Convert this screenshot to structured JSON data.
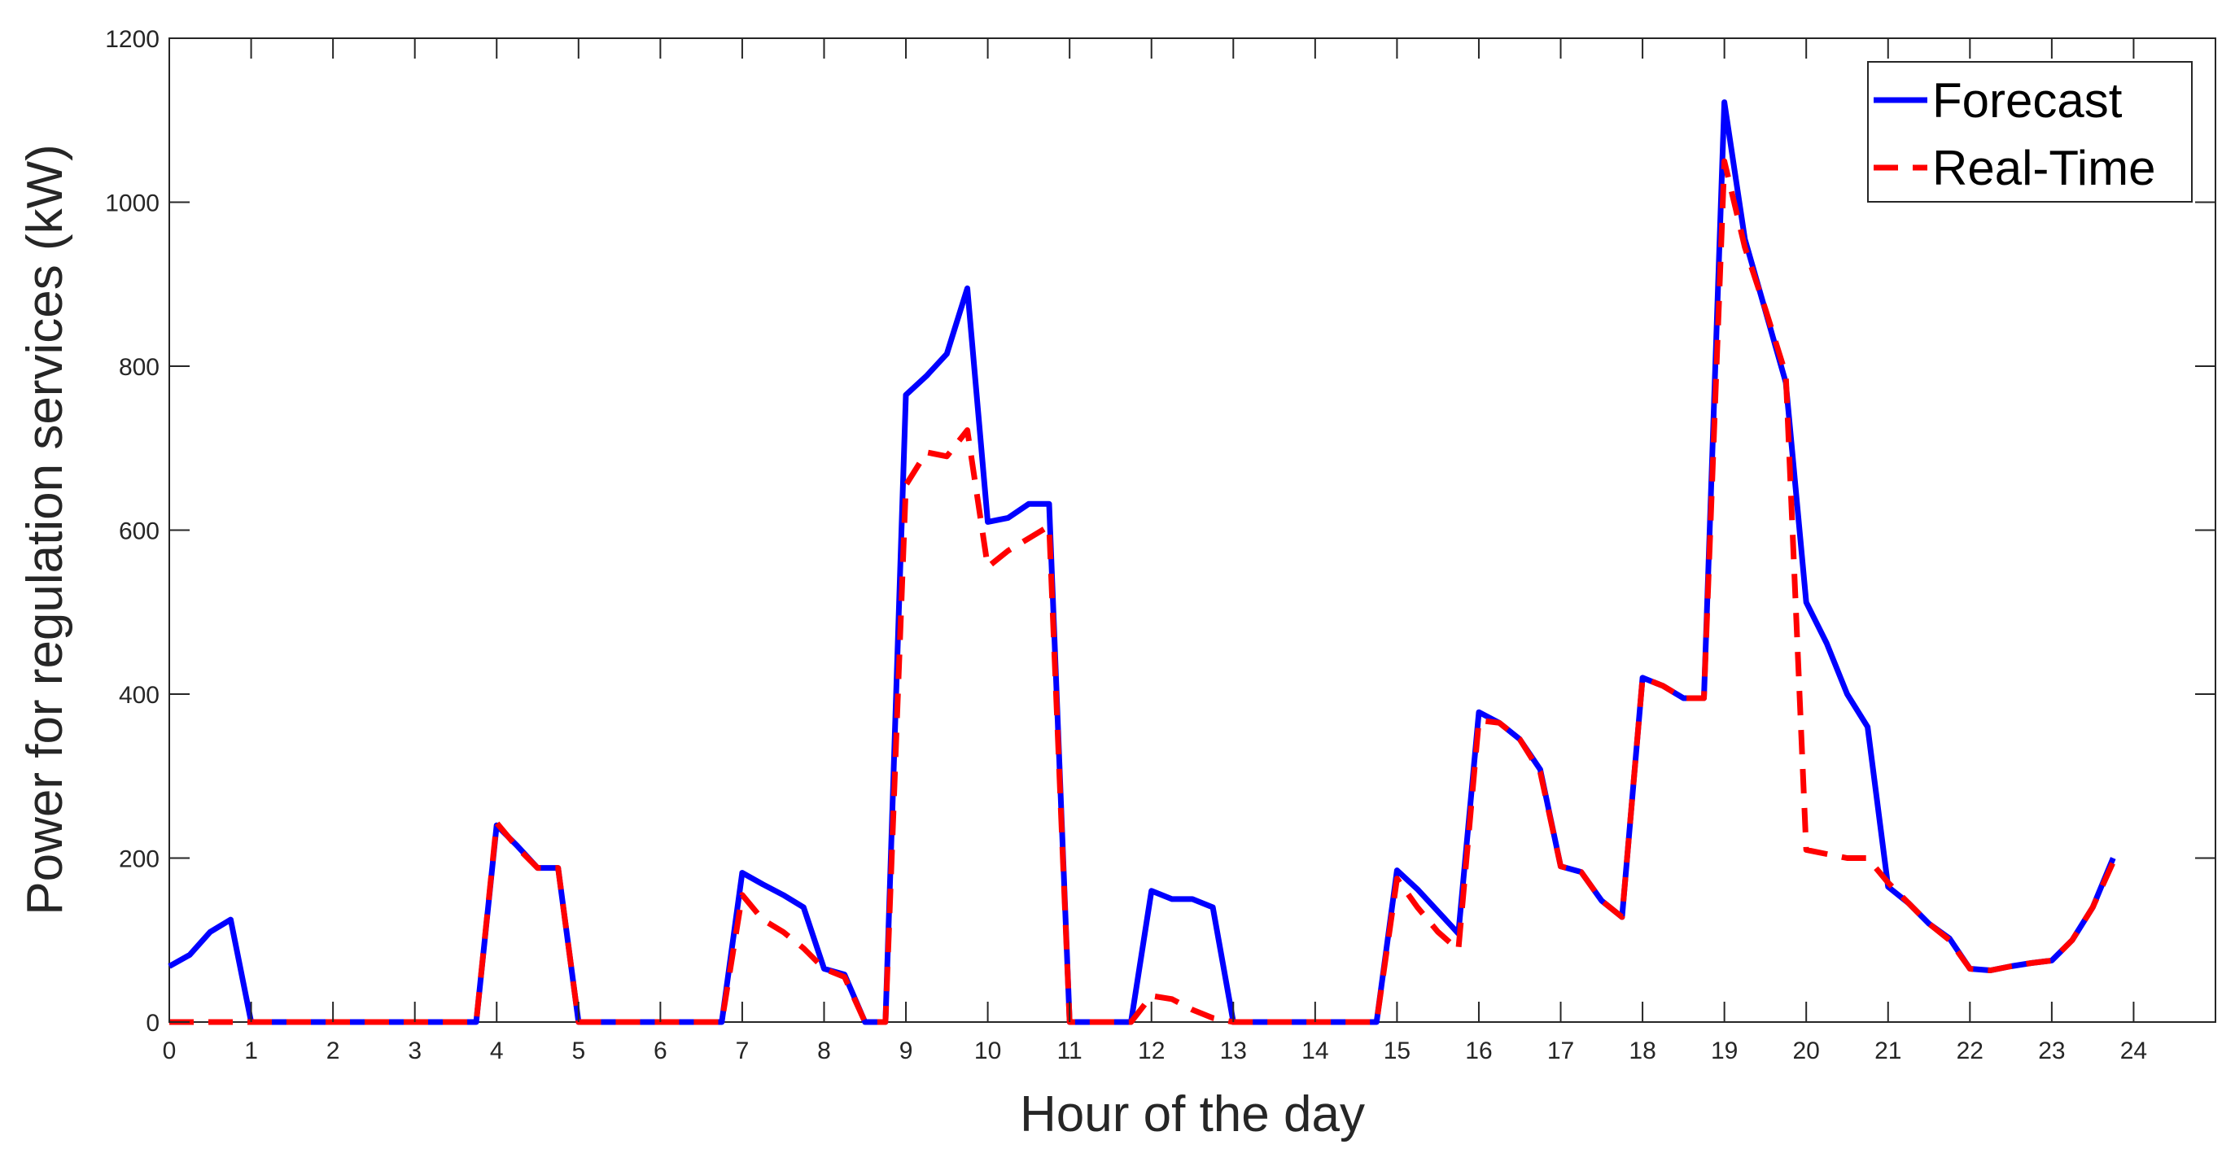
{
  "chart_data": {
    "type": "line",
    "xlabel": "Hour of the day",
    "ylabel": "Power for regulation services (kW)",
    "xlim": [
      0,
      25
    ],
    "ylim": [
      0,
      1200
    ],
    "xticks": [
      0,
      1,
      2,
      3,
      4,
      5,
      6,
      7,
      8,
      9,
      10,
      11,
      12,
      13,
      14,
      15,
      16,
      17,
      18,
      19,
      20,
      21,
      22,
      23,
      24
    ],
    "yticks": [
      0,
      200,
      400,
      600,
      800,
      1000,
      1200
    ],
    "grid": false,
    "legend_position": "top-right",
    "series": [
      {
        "name": "Forecast",
        "color": "#0000ff",
        "line_style": "solid",
        "x": [
          0,
          0.25,
          0.5,
          0.75,
          1,
          1.25,
          1.5,
          1.75,
          2,
          2.25,
          2.5,
          2.75,
          3,
          3.25,
          3.5,
          3.75,
          4,
          4.25,
          4.5,
          4.75,
          5,
          5.25,
          5.5,
          5.75,
          6,
          6.25,
          6.5,
          6.75,
          7,
          7.25,
          7.5,
          7.75,
          8,
          8.25,
          8.5,
          8.75,
          9,
          9.25,
          9.5,
          9.75,
          10,
          10.25,
          10.5,
          10.75,
          11,
          11.25,
          11.5,
          11.75,
          12,
          12.25,
          12.5,
          12.75,
          13,
          13.25,
          13.5,
          13.75,
          14,
          14.25,
          14.5,
          14.75,
          15,
          15.25,
          15.5,
          15.75,
          16,
          16.25,
          16.5,
          16.75,
          17,
          17.25,
          17.5,
          17.75,
          18,
          18.25,
          18.5,
          18.75,
          19,
          19.25,
          19.5,
          19.75,
          20,
          20.25,
          20.5,
          20.75,
          21,
          21.25,
          21.5,
          21.75,
          22,
          22.25,
          22.5,
          22.75,
          23,
          23.25,
          23.5,
          23.75
        ],
        "y": [
          68,
          82,
          110,
          125,
          0,
          0,
          0,
          0,
          0,
          0,
          0,
          0,
          0,
          0,
          0,
          0,
          240,
          215,
          188,
          188,
          0,
          0,
          0,
          0,
          0,
          0,
          0,
          0,
          182,
          168,
          155,
          140,
          65,
          58,
          0,
          0,
          765,
          788,
          815,
          895,
          610,
          615,
          632,
          632,
          0,
          0,
          0,
          0,
          160,
          150,
          150,
          140,
          0,
          0,
          0,
          0,
          0,
          0,
          0,
          0,
          185,
          162,
          135,
          108,
          378,
          365,
          345,
          308,
          190,
          183,
          148,
          128,
          420,
          410,
          395,
          395,
          1122,
          955,
          868,
          780,
          512,
          462,
          400,
          360,
          165,
          145,
          120,
          102,
          65,
          63,
          68,
          72,
          75,
          100,
          140,
          200
        ]
      },
      {
        "name": "Real-Time",
        "color": "#ff0000",
        "line_style": "dashed",
        "x": [
          0,
          0.25,
          0.5,
          0.75,
          1,
          1.25,
          1.5,
          1.75,
          2,
          2.25,
          2.5,
          2.75,
          3,
          3.25,
          3.5,
          3.75,
          4,
          4.25,
          4.5,
          4.75,
          5,
          5.25,
          5.5,
          5.75,
          6,
          6.25,
          6.5,
          6.75,
          7,
          7.25,
          7.5,
          7.75,
          8,
          8.25,
          8.5,
          8.75,
          9,
          9.25,
          9.5,
          9.75,
          10,
          10.25,
          10.5,
          10.75,
          11,
          11.25,
          11.5,
          11.75,
          12,
          12.25,
          12.5,
          12.75,
          13,
          13.25,
          13.5,
          13.75,
          14,
          14.25,
          14.5,
          14.75,
          15,
          15.25,
          15.5,
          15.75,
          16,
          16.25,
          16.5,
          16.75,
          17,
          17.25,
          17.5,
          17.75,
          18,
          18.25,
          18.5,
          18.75,
          19,
          19.25,
          19.5,
          19.75,
          20,
          20.25,
          20.5,
          20.75,
          21,
          21.25,
          21.5,
          21.75,
          22,
          22.25,
          22.5,
          22.75,
          23,
          23.25,
          23.5,
          23.75
        ],
        "y": [
          0,
          0,
          0,
          0,
          0,
          0,
          0,
          0,
          0,
          0,
          0,
          0,
          0,
          0,
          0,
          0,
          243,
          213,
          188,
          188,
          0,
          0,
          0,
          0,
          0,
          0,
          0,
          0,
          155,
          125,
          110,
          90,
          65,
          55,
          0,
          0,
          655,
          695,
          690,
          722,
          555,
          575,
          590,
          605,
          0,
          0,
          0,
          0,
          32,
          28,
          15,
          5,
          0,
          0,
          0,
          0,
          0,
          0,
          0,
          0,
          175,
          140,
          110,
          88,
          368,
          365,
          345,
          305,
          190,
          183,
          148,
          128,
          420,
          410,
          395,
          395,
          1050,
          945,
          870,
          790,
          210,
          205,
          200,
          200,
          170,
          145,
          120,
          100,
          65,
          63,
          68,
          72,
          75,
          100,
          140,
          195
        ]
      }
    ]
  }
}
